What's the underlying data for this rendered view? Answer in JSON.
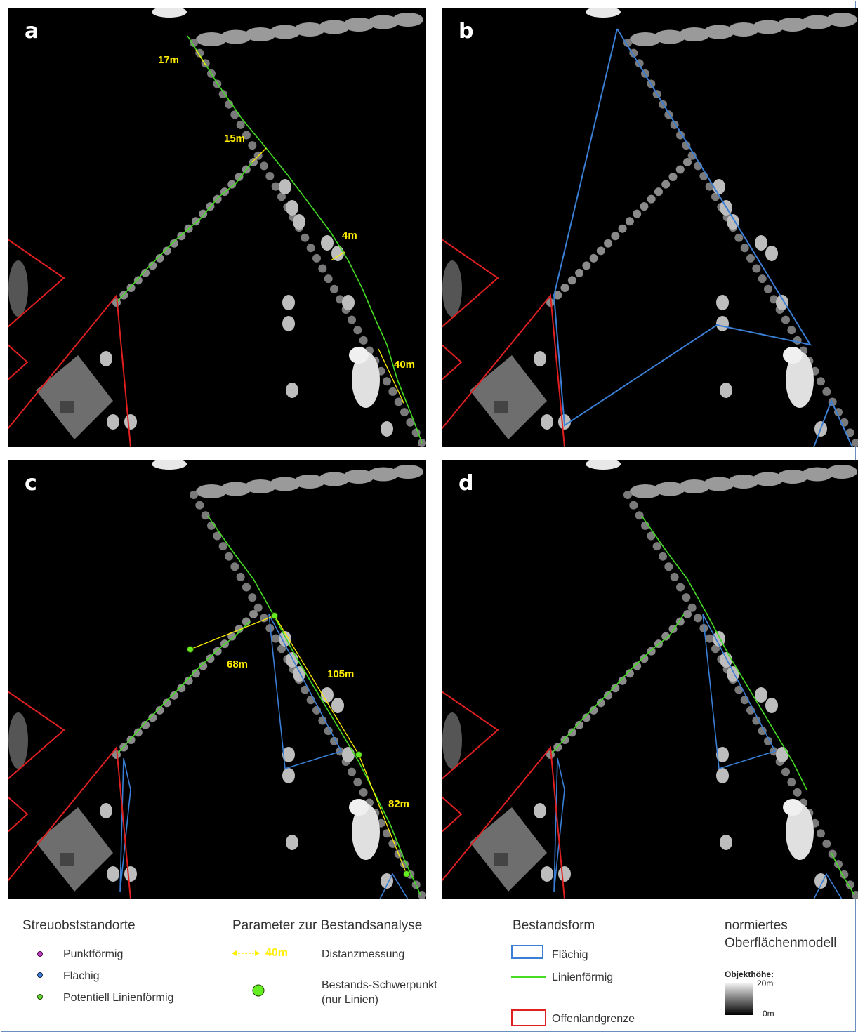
{
  "panels": [
    {
      "letter": "a",
      "distances": [
        "17m",
        "15m",
        "4m",
        "40m"
      ]
    },
    {
      "letter": "b",
      "distances": []
    },
    {
      "letter": "c",
      "distances": [
        "68m",
        "105m",
        "82m"
      ]
    },
    {
      "letter": "d",
      "distances": []
    }
  ],
  "legend": {
    "standorte": {
      "title": "Streuobststandorte",
      "items": [
        "Punktförmig",
        "Flächig",
        "Potentiell Linienförmig"
      ]
    },
    "parameter": {
      "title": "Parameter zur Bestandsanalyse",
      "distance_sample": "40m",
      "distance_label": "Distanzmessung",
      "centroid_label_1": "Bestands-Schwerpunkt",
      "centroid_label_2": "(nur Linien)"
    },
    "bestandsform": {
      "title": "Bestandsform",
      "items": [
        "Flächig",
        "Linienförmig",
        "Offenlandgrenze"
      ]
    },
    "dom": {
      "title_1": "normiertes",
      "title_2": "Oberflächenmodell",
      "height_label": "Objekthöhe:",
      "max": "20m",
      "min": "0m"
    }
  },
  "colors": {
    "punkt": "#c040c0",
    "flaechig": "#3a7fd5",
    "linie": "#44dd22",
    "offenland": "#e02020",
    "distanz": "#ffee00"
  }
}
